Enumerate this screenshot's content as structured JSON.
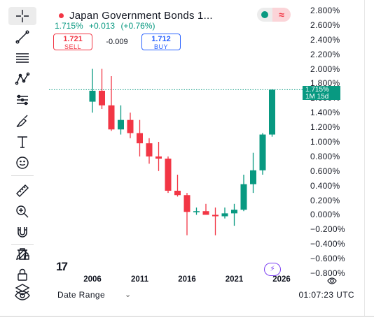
{
  "symbol": {
    "name": "Japan Government Bonds 1...",
    "last": "1.715%",
    "change": "+0.013",
    "change_pct": "(+0.76%)"
  },
  "trade": {
    "sell_price": "1.721",
    "sell_label": "SELL",
    "spread": "-0.009",
    "buy_price": "1.712",
    "buy_label": "BUY"
  },
  "price_tag": {
    "price": "1.715%",
    "interval": "1M 15d"
  },
  "price_axis": [
    "2.800%",
    "2.600%",
    "2.400%",
    "2.200%",
    "2.000%",
    "1.800%",
    "1.600%",
    "1.400%",
    "1.200%",
    "1.000%",
    "0.800%",
    "0.600%",
    "0.400%",
    "0.200%",
    "0.000%",
    "−0.200%",
    "−0.400%",
    "−0.600%",
    "−0.800%"
  ],
  "price_axis_values": [
    2.8,
    2.6,
    2.4,
    2.2,
    2.0,
    1.8,
    1.6,
    1.4,
    1.2,
    1.0,
    0.8,
    0.6,
    0.4,
    0.2,
    0.0,
    -0.2,
    -0.4,
    -0.6,
    -0.8
  ],
  "time_axis": [
    {
      "label": "2006",
      "year": 2006
    },
    {
      "label": "2011",
      "year": 2011
    },
    {
      "label": "2016",
      "year": 2016
    },
    {
      "label": "2021",
      "year": 2021
    },
    {
      "label": "2026",
      "year": 2026
    }
  ],
  "bottom_bar": {
    "date_range": "Date Range",
    "clock": "01:07:23 UTC"
  },
  "colors": {
    "up": "#089981",
    "down": "#f23645",
    "accent": "#2962ff"
  },
  "chart_data": {
    "type": "candlestick",
    "interval": "12M",
    "candles": [
      {
        "year": 2006,
        "open": 1.55,
        "high": 2.0,
        "low": 1.4,
        "close": 1.7
      },
      {
        "year": 2007,
        "open": 1.7,
        "high": 2.0,
        "low": 1.45,
        "close": 1.5
      },
      {
        "year": 2008,
        "open": 1.5,
        "high": 1.9,
        "low": 1.15,
        "close": 1.17
      },
      {
        "year": 2009,
        "open": 1.17,
        "high": 1.5,
        "low": 1.1,
        "close": 1.3
      },
      {
        "year": 2010,
        "open": 1.3,
        "high": 1.4,
        "low": 1.05,
        "close": 1.12
      },
      {
        "year": 2011,
        "open": 1.12,
        "high": 1.3,
        "low": 0.8,
        "close": 0.98
      },
      {
        "year": 2012,
        "open": 0.98,
        "high": 1.05,
        "low": 0.7,
        "close": 0.8
      },
      {
        "year": 2013,
        "open": 0.8,
        "high": 1.0,
        "low": 0.6,
        "close": 0.77
      },
      {
        "year": 2014,
        "open": 0.77,
        "high": 0.8,
        "low": 0.3,
        "close": 0.33
      },
      {
        "year": 2015,
        "open": 0.33,
        "high": 0.55,
        "low": 0.25,
        "close": 0.27
      },
      {
        "year": 2016,
        "open": 0.27,
        "high": 0.3,
        "low": -0.28,
        "close": 0.04
      },
      {
        "year": 2017,
        "open": 0.04,
        "high": 0.1,
        "low": 0.0,
        "close": 0.05
      },
      {
        "year": 2018,
        "open": 0.05,
        "high": 0.15,
        "low": 0.0,
        "close": 0.0
      },
      {
        "year": 2019,
        "open": 0.0,
        "high": 0.1,
        "low": -0.28,
        "close": -0.02
      },
      {
        "year": 2020,
        "open": -0.02,
        "high": 0.1,
        "low": -0.05,
        "close": 0.02
      },
      {
        "year": 2021,
        "open": 0.02,
        "high": 0.15,
        "low": -0.15,
        "close": 0.07
      },
      {
        "year": 2022,
        "open": 0.07,
        "high": 0.55,
        "low": 0.05,
        "close": 0.42
      },
      {
        "year": 2023,
        "open": 0.42,
        "high": 0.85,
        "low": 0.3,
        "close": 0.61
      },
      {
        "year": 2024,
        "open": 0.61,
        "high": 1.12,
        "low": 0.55,
        "close": 1.1
      },
      {
        "year": 2025,
        "open": 1.1,
        "high": 1.72,
        "low": 1.07,
        "close": 1.715
      }
    ],
    "last_price": 1.715,
    "ylim": [
      -0.8,
      2.8
    ]
  },
  "toolbar": {
    "icons": [
      "crosshair-icon",
      "trend-line-icon",
      "horizontal-lines-icon",
      "pattern-icon",
      "measure-lines-icon",
      "brush-icon",
      "text-icon",
      "emoji-icon",
      "ruler-icon",
      "zoom-in-icon",
      "magnet-icon",
      "lock-pen-icon",
      "lock-icon",
      "eye-icon",
      "trash-icon",
      "layers-icon"
    ]
  }
}
